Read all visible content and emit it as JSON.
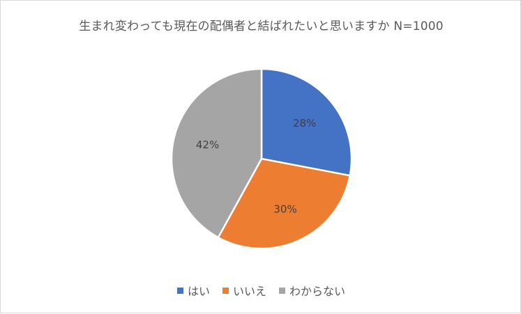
{
  "chart_data": {
    "type": "pie",
    "title": "生まれ変わっても現在の配偶者と結ばれたいと思いますか N=1000",
    "categories": [
      "はい",
      "いいえ",
      "わからない"
    ],
    "values": [
      28,
      30,
      42
    ],
    "data_labels": [
      "28%",
      "30%",
      "42%"
    ],
    "colors": [
      "#4472c4",
      "#ed7d31",
      "#a5a5a5"
    ],
    "legend_position": "bottom",
    "start_angle_deg": 0,
    "direction": "clockwise"
  }
}
